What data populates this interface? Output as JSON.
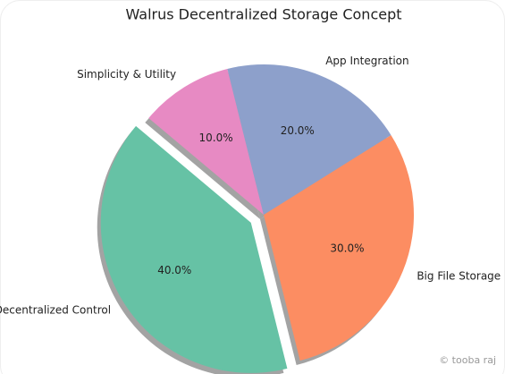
{
  "chart_data": {
    "type": "pie",
    "title": "Walrus Decentralized Storage Concept",
    "categories": [
      "Big File Storage",
      "Decentralized Control",
      "Simplicity & Utility",
      "App Integration"
    ],
    "values": [
      30,
      40,
      10,
      20
    ],
    "value_labels": [
      "30.0%",
      "40.0%",
      "10.0%",
      "20.0%"
    ],
    "colors": [
      "#fc8d62",
      "#66c2a5",
      "#e78ac3",
      "#8da0cb"
    ],
    "explode": [
      0,
      0.1,
      0,
      0
    ],
    "shadow": true
  },
  "watermark": "© tooba raj"
}
